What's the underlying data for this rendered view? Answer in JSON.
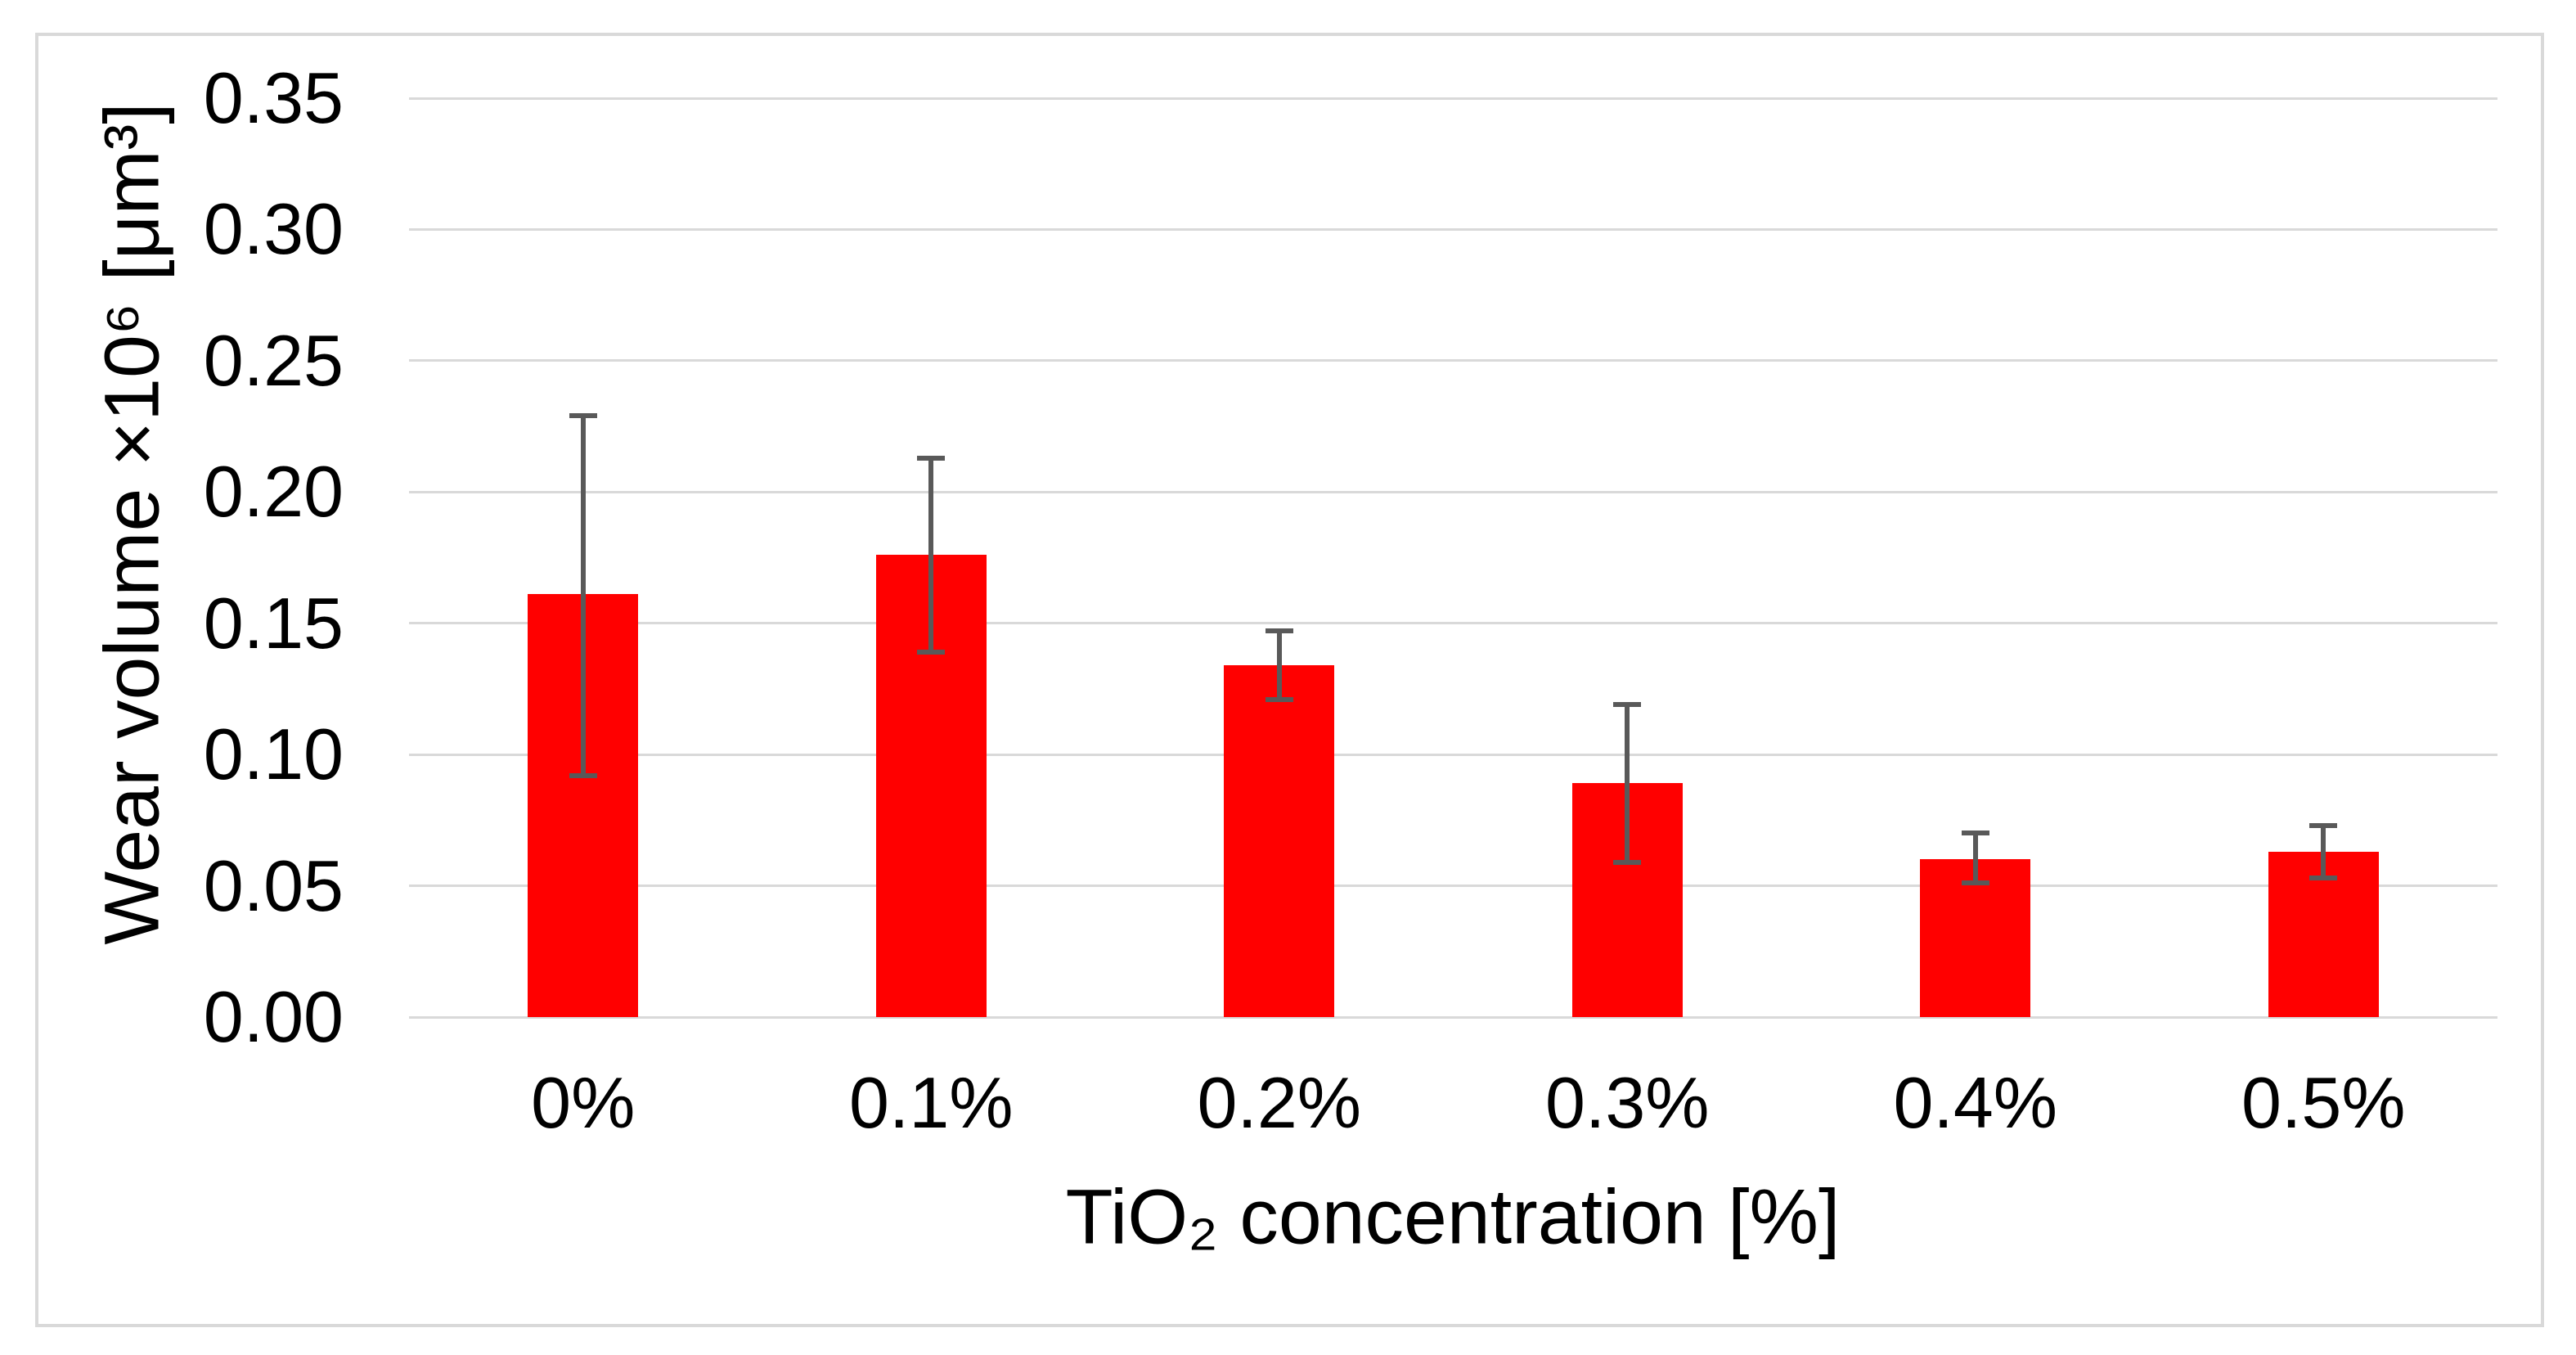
{
  "chart_data": {
    "type": "bar",
    "title": "",
    "categories": [
      "0%",
      "0.1%",
      "0.2%",
      "0.3%",
      "0.4%",
      "0.5%"
    ],
    "values": [
      0.161,
      0.176,
      0.134,
      0.089,
      0.06,
      0.063
    ],
    "error_plus": [
      0.068,
      0.037,
      0.013,
      0.03,
      0.01,
      0.01
    ],
    "error_minus": [
      0.069,
      0.037,
      0.013,
      0.03,
      0.009,
      0.01
    ],
    "xlabel": "TiO₂ concentration [%]",
    "ylabel": "Wear volume ×10⁶ [μm³]",
    "ylim": [
      0,
      0.35
    ],
    "yticks": [
      "0.00",
      "0.05",
      "0.10",
      "0.15",
      "0.20",
      "0.25",
      "0.30",
      "0.35"
    ],
    "grid": true,
    "legend_position": "none",
    "colors": {
      "bar": "#FF0000",
      "error_bar": "#595959",
      "gridline": "#D9D9D9",
      "frame_border": "#D9D9D9",
      "text": "#000000",
      "background": "#FFFFFF"
    }
  }
}
